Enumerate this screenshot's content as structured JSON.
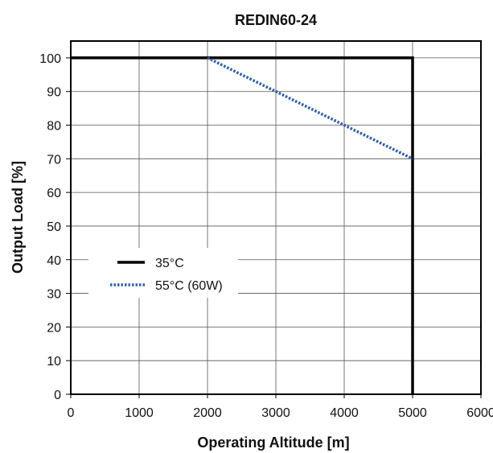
{
  "chart_data": {
    "type": "line",
    "title": "REDIN60-24",
    "xlabel": "Operating Altitude [m]",
    "ylabel": "Output Load [%]",
    "xlim": [
      0,
      6000
    ],
    "ylim": [
      0,
      105
    ],
    "xticks": [
      "0",
      "1000",
      "2000",
      "3000",
      "4000",
      "5000",
      "6000"
    ],
    "yticks": [
      "0",
      "10",
      "20",
      "30",
      "40",
      "50",
      "60",
      "70",
      "80",
      "90",
      "100"
    ],
    "grid": true,
    "legend_position": "left-middle",
    "series": [
      {
        "name": "35°C",
        "style": "solid",
        "color": "#000000",
        "x": [
          0,
          5000,
          5000
        ],
        "y": [
          100,
          100,
          0
        ]
      },
      {
        "name": "55°C (60W)",
        "style": "dotted",
        "color": "#2e5fa8",
        "x": [
          2000,
          5000
        ],
        "y": [
          100,
          70
        ]
      }
    ]
  }
}
